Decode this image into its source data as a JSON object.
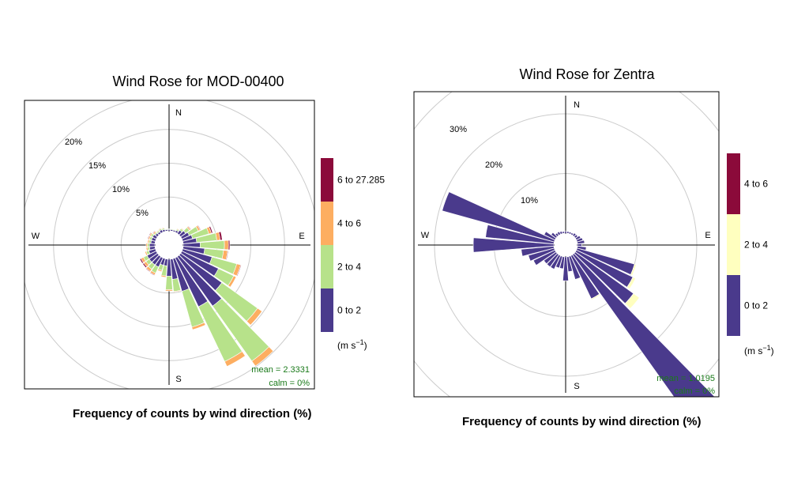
{
  "chart_data": [
    {
      "type": "windrose",
      "title": "Wind Rose for MOD-00400",
      "caption": "Frequency of counts by wind direction (%)",
      "compass": {
        "n": "N",
        "e": "E",
        "s": "S",
        "w": "W"
      },
      "ring_labels": [
        "5%",
        "10%",
        "15%",
        "20%"
      ],
      "ring_values": [
        5,
        10,
        15,
        20
      ],
      "r_max": 24,
      "stats": {
        "mean": "mean = 2.3331",
        "calm": "calm = 0%"
      },
      "legend": {
        "unit_main": "(m s",
        "unit_exp": "−1",
        "unit_close": ")",
        "bins": [
          "0 to 2",
          "2 to 4",
          "4 to 6",
          "6 to 27.285"
        ],
        "colors": [
          "#4a3a8c",
          "#b7e28a",
          "#fdae61",
          "#8b0a3a"
        ]
      },
      "directions_deg": [
        0,
        10,
        20,
        30,
        40,
        50,
        60,
        70,
        80,
        90,
        100,
        110,
        120,
        130,
        140,
        150,
        160,
        170,
        180,
        190,
        200,
        210,
        220,
        230,
        240,
        250,
        260,
        270,
        280,
        290,
        300,
        310,
        320,
        330,
        340,
        350
      ],
      "series": [
        {
          "name": "0 to 2",
          "values": [
            0.2,
            0.2,
            0.2,
            0.3,
            0.6,
            0.9,
            1.2,
            1.5,
            2.0,
            2.5,
            3.2,
            4.5,
            6.0,
            7.5,
            9.0,
            8.0,
            5.0,
            3.0,
            2.5,
            1.0,
            1.0,
            1.5,
            1.5,
            1.5,
            1.5,
            1.0,
            0.8,
            0.8,
            0.6,
            0.6,
            0.6,
            0.4,
            0.3,
            0.4,
            0.3,
            0.2
          ]
        },
        {
          "name": "2 to 4",
          "values": [
            0.1,
            0.1,
            0.1,
            0.2,
            0.3,
            0.7,
            1.5,
            2.5,
            3.0,
            3.6,
            2.8,
            3.8,
            2.5,
            6.5,
            10.0,
            9.0,
            5.5,
            1.8,
            2.0,
            1.5,
            0.8,
            1.0,
            0.8,
            0.6,
            0.6,
            0.4,
            0.3,
            0.3,
            0.3,
            0.3,
            0.3,
            0.2,
            0.2,
            0.2,
            0.2,
            0.1
          ]
        },
        {
          "name": "4 to 6",
          "values": [
            0.0,
            0.0,
            0.0,
            0.1,
            0.1,
            0.2,
            0.3,
            0.4,
            0.5,
            0.6,
            0.6,
            0.6,
            0.4,
            0.8,
            0.9,
            0.8,
            0.4,
            0.1,
            0.2,
            0.2,
            0.2,
            0.3,
            0.4,
            0.4,
            0.4,
            0.2,
            0.2,
            0.2,
            0.2,
            0.2,
            0.2,
            0.2,
            0.1,
            0.1,
            0.1,
            0.0
          ]
        },
        {
          "name": "6 to 27.285",
          "values": [
            0.0,
            0.0,
            0.0,
            0.0,
            0.0,
            0.1,
            0.1,
            0.2,
            0.3,
            0.2,
            0.1,
            0.1,
            0.0,
            0.0,
            0.0,
            0.0,
            0.0,
            0.0,
            0.0,
            0.0,
            0.0,
            0.1,
            0.1,
            0.2,
            0.2,
            0.0,
            0.0,
            0.0,
            0.0,
            0.1,
            0.1,
            0.1,
            0.0,
            0.0,
            0.0,
            0.0
          ]
        }
      ]
    },
    {
      "type": "windrose",
      "title": "Wind Rose for Zentra",
      "caption": "Frequency of counts by wind direction (%)",
      "compass": {
        "n": "N",
        "e": "E",
        "s": "S",
        "w": "W"
      },
      "ring_labels": [
        "10%",
        "20%",
        "30%"
      ],
      "ring_values": [
        10,
        20,
        30
      ],
      "r_max": 36,
      "stats": {
        "mean": "mean = 1.0195",
        "calm": "calm = 0%"
      },
      "legend": {
        "unit_main": "(m s",
        "unit_exp": "−1",
        "unit_close": ")",
        "bins": [
          "0 to 2",
          "2 to 4",
          "4 to 6"
        ],
        "colors": [
          "#4a3a8c",
          "#ffffbf",
          "#8b0a3a"
        ]
      },
      "directions_deg": [
        0,
        10,
        20,
        30,
        40,
        50,
        60,
        70,
        80,
        90,
        100,
        110,
        120,
        130,
        140,
        150,
        160,
        170,
        180,
        190,
        200,
        210,
        220,
        230,
        240,
        250,
        260,
        270,
        280,
        290,
        300,
        310,
        320,
        330,
        340,
        350
      ],
      "series": [
        {
          "name": "0 to 2",
          "values": [
            0.3,
            0.3,
            0.3,
            0.3,
            0.5,
            0.5,
            0.8,
            1.0,
            1.2,
            0.7,
            1.5,
            10.0,
            10.5,
            12.0,
            34.0,
            8.0,
            4.0,
            2.5,
            4.0,
            2.0,
            2.0,
            2.5,
            2.5,
            2.5,
            4.0,
            4.5,
            5.5,
            13.5,
            11.5,
            19.5,
            2.0,
            1.0,
            0.5,
            0.5,
            0.4,
            0.3
          ]
        },
        {
          "name": "2 to 4",
          "values": [
            0.0,
            0.0,
            0.0,
            0.0,
            0.0,
            0.0,
            0.0,
            0.0,
            0.0,
            0.0,
            0.1,
            0.3,
            0.5,
            1.2,
            0.8,
            0.2,
            0.1,
            0.0,
            0.0,
            0.0,
            0.0,
            0.0,
            0.0,
            0.0,
            0.0,
            0.0,
            0.0,
            0.0,
            0.0,
            0.0,
            0.0,
            0.0,
            0.0,
            0.0,
            0.0,
            0.0
          ]
        },
        {
          "name": "4 to 6",
          "values": [
            0.0,
            0.0,
            0.0,
            0.0,
            0.0,
            0.0,
            0.0,
            0.0,
            0.0,
            0.0,
            0.0,
            0.0,
            0.0,
            0.0,
            0.0,
            0.0,
            0.0,
            0.0,
            0.0,
            0.0,
            0.0,
            0.0,
            0.0,
            0.0,
            0.0,
            0.0,
            0.0,
            0.0,
            0.0,
            0.0,
            0.0,
            0.0,
            0.0,
            0.0,
            0.0,
            0.0
          ]
        }
      ]
    }
  ]
}
